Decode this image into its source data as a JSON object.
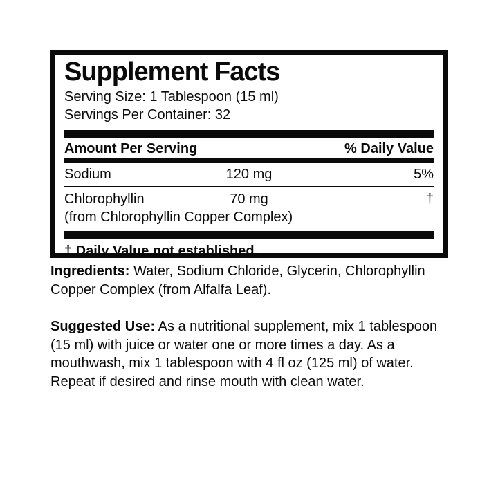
{
  "panel": {
    "title": "Supplement Facts",
    "serving_size": "Serving Size: 1 Tablespoon (15 ml)",
    "servings_per_container": "Servings Per Container: 32",
    "header": {
      "amount_per_serving": "Amount Per Serving",
      "percent_daily_value": "% Daily Value"
    },
    "rows": [
      {
        "name": "Sodium",
        "amount": "120 mg",
        "daily_value": "5%"
      },
      {
        "name": "Chlorophyllin",
        "amount": "70 mg",
        "daily_value": "†",
        "note": "(from Chlorophyllin Copper Complex)"
      }
    ],
    "footnote": "† Daily Value not established."
  },
  "ingredients": {
    "label": "Ingredients:",
    "text": " Water, Sodium Chloride, Glycerin, Chlorophyllin Copper Complex (from Alfalfa Leaf)."
  },
  "suggested_use": {
    "label": "Suggested Use:",
    "text": " As a nutritional supplement, mix 1 tablespoon (15 ml) with juice or water one or more times a day. As a mouthwash, mix 1 tablespoon with 4 fl oz (125 ml) of water. Repeat if desired and rinse mouth with clean water."
  },
  "colors": {
    "text": "#0a0a0a",
    "background": "#ffffff"
  }
}
